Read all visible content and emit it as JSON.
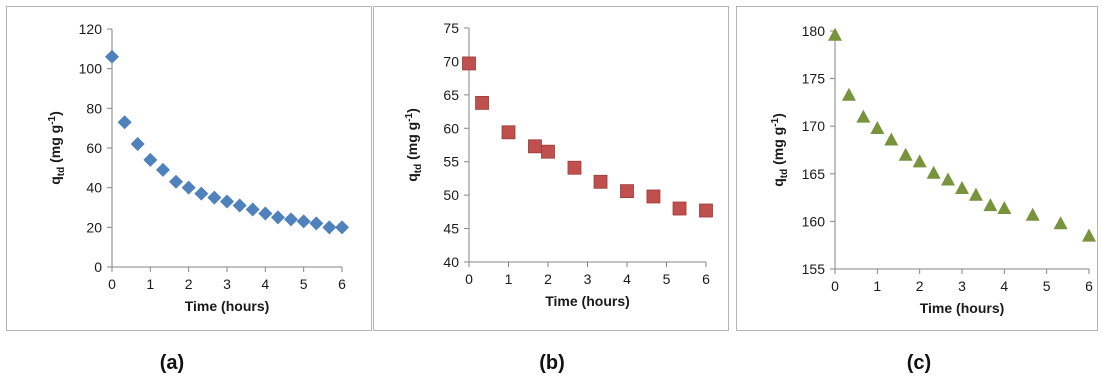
{
  "chart_data": [
    {
      "type": "scatter",
      "caption": "(a)",
      "xlabel": "Time (hours)",
      "ylabel_main": "q",
      "ylabel_sub": "td",
      "ylabel_unit": " (mg g",
      "ylabel_exp": "-1",
      "ylabel_close": ")",
      "xlim": [
        0,
        6
      ],
      "ylim": [
        0,
        120
      ],
      "xticks": [
        "0",
        "1",
        "2",
        "3",
        "4",
        "5",
        "6"
      ],
      "yticks": [
        "0",
        "20",
        "40",
        "60",
        "80",
        "100",
        "120"
      ],
      "marker": "diamond",
      "color": "#4f81bd",
      "x": [
        0,
        0.33,
        0.67,
        1.0,
        1.33,
        1.67,
        2.0,
        2.33,
        2.67,
        3.0,
        3.33,
        3.67,
        4.0,
        4.33,
        4.67,
        5.0,
        5.33,
        5.67,
        6.0
      ],
      "y": [
        106,
        73,
        62,
        54,
        49,
        43,
        40,
        37,
        35,
        33,
        31,
        29,
        27,
        25,
        24,
        23,
        22,
        20,
        20
      ]
    },
    {
      "type": "scatter",
      "caption": "(b)",
      "xlabel": "Time (hours)",
      "ylabel_main": "q",
      "ylabel_sub": "td",
      "ylabel_unit": " (mg g",
      "ylabel_exp": "-1",
      "ylabel_close": ")",
      "xlim": [
        0,
        6
      ],
      "ylim": [
        40,
        75
      ],
      "xticks": [
        "0",
        "1",
        "2",
        "3",
        "4",
        "5",
        "6"
      ],
      "yticks": [
        "40",
        "45",
        "50",
        "55",
        "60",
        "65",
        "70",
        "75"
      ],
      "marker": "square",
      "color": "#c0504d",
      "x": [
        0,
        0.33,
        1.0,
        1.67,
        2.0,
        2.67,
        3.33,
        4.0,
        4.67,
        5.33,
        6.0
      ],
      "y": [
        69.7,
        63.8,
        59.4,
        57.3,
        56.5,
        54.1,
        52.0,
        50.6,
        49.8,
        48.0,
        47.7
      ]
    },
    {
      "type": "scatter",
      "caption": "(c)",
      "xlabel": "Time (hours)",
      "ylabel_main": "q",
      "ylabel_sub": "td",
      "ylabel_unit": " (mg g",
      "ylabel_exp": "-1",
      "ylabel_close": ")",
      "xlim": [
        0,
        6
      ],
      "ylim": [
        155,
        180
      ],
      "xticks": [
        "0",
        "1",
        "2",
        "3",
        "4",
        "5",
        "6"
      ],
      "yticks": [
        "155",
        "160",
        "165",
        "170",
        "175",
        "180"
      ],
      "marker": "triangle",
      "color": "#77933c",
      "x": [
        0,
        0.33,
        0.67,
        1.0,
        1.33,
        1.67,
        2.0,
        2.33,
        2.67,
        3.0,
        3.33,
        3.67,
        4.0,
        4.67,
        5.33,
        6.0
      ],
      "y": [
        179.5,
        173.2,
        170.9,
        169.7,
        168.5,
        166.9,
        166.2,
        165.0,
        164.3,
        163.4,
        162.7,
        161.6,
        161.3,
        160.6,
        159.7,
        158.4
      ]
    }
  ],
  "colors": {
    "border": "#b5b5b5",
    "axis": "#868686"
  }
}
